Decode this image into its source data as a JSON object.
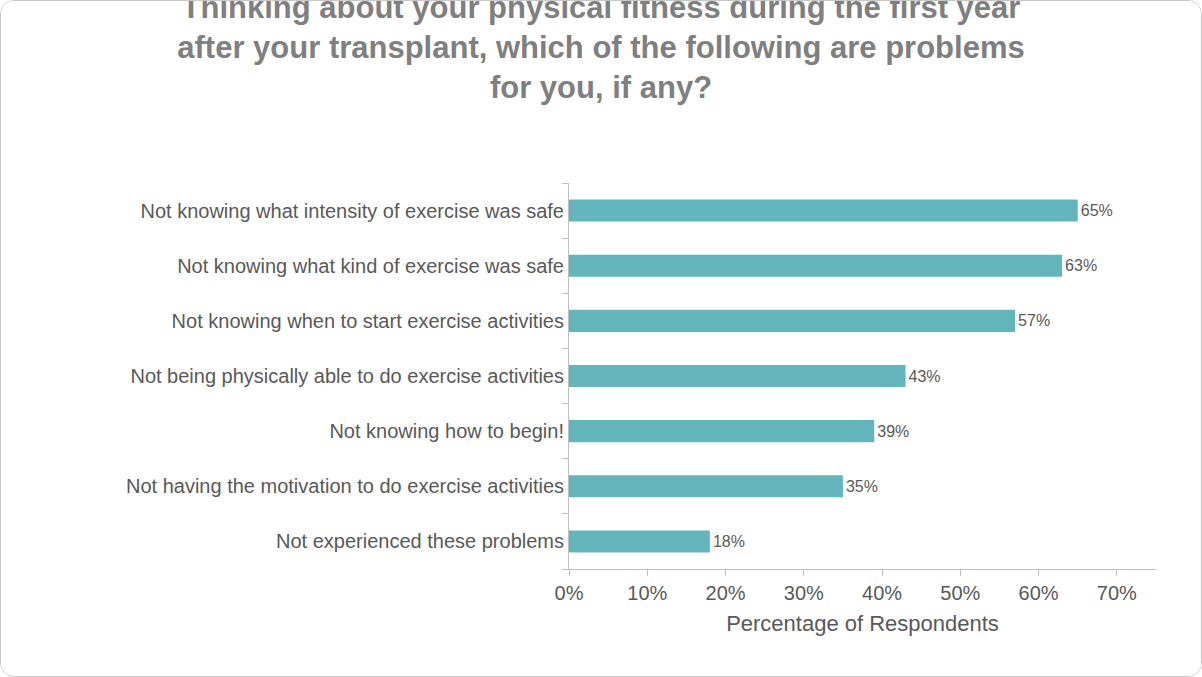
{
  "chart_data": {
    "type": "bar",
    "orientation": "horizontal",
    "title": "Thinking about your physical fitness during the first year\nafter your transplant, which of the following are problems\nfor you, if any?",
    "x_label": "Percentage of Respondents",
    "categories": [
      "Not knowing what intensity of exercise was safe",
      "Not knowing what kind of exercise was safe",
      "Not knowing when to start exercise activities",
      "Not being physically able to do exercise activities",
      "Not knowing how to begin!",
      "Not having the motivation to do exercise activities",
      "Not experienced these problems"
    ],
    "values": [
      65,
      63,
      57,
      43,
      39,
      35,
      18
    ],
    "value_labels": [
      "65%",
      "63%",
      "57%",
      "43%",
      "39%",
      "35%",
      "18%"
    ],
    "data_labels": true,
    "color": "#62b6bb",
    "xlim": [
      0,
      75
    ],
    "xticks": [
      {
        "value": 0,
        "label": "0%"
      },
      {
        "value": 10,
        "label": "10%"
      },
      {
        "value": 20,
        "label": "20%"
      },
      {
        "value": 30,
        "label": "30%"
      },
      {
        "value": 40,
        "label": "40%"
      },
      {
        "value": 50,
        "label": "50%"
      },
      {
        "value": 60,
        "label": "60%"
      },
      {
        "value": 70,
        "label": "70%"
      }
    ],
    "grid": false
  }
}
